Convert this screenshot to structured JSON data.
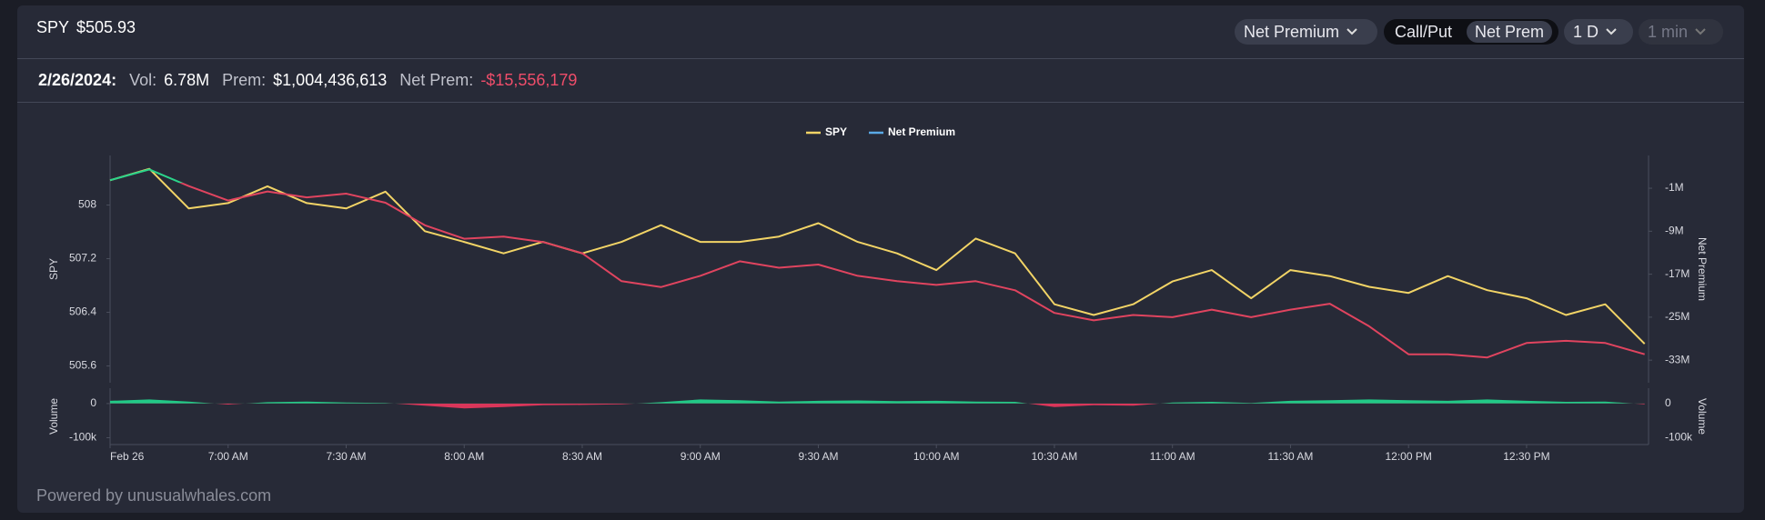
{
  "header": {
    "ticker": "SPY",
    "price": "$505.93",
    "controls": [
      "Net Premium",
      "Call/Put",
      "Net Prem",
      "1 D",
      "1 min"
    ]
  },
  "summary": {
    "date": "2/26/2024:",
    "vol_label": "Vol:",
    "vol": "6.78M",
    "prem_label": "Prem:",
    "prem": "$1,004,436,613",
    "net_label": "Net Prem:",
    "net": "-$15,556,179"
  },
  "chart_data": [
    {
      "type": "line",
      "x": [
        390,
        400,
        410,
        420,
        430,
        440,
        450,
        460,
        470,
        480,
        490,
        500,
        510,
        520,
        530,
        540,
        550,
        560,
        570,
        580,
        590,
        600,
        610,
        620,
        630,
        640,
        650,
        660,
        670,
        680,
        690,
        700,
        710,
        720,
        730,
        740,
        750,
        760,
        770,
        780
      ],
      "xlim": [
        390,
        781
      ],
      "y_label": "SPY",
      "ylim": [
        505.35,
        508.74
      ],
      "yticks": [
        505.6,
        506.4,
        507.2,
        508
      ],
      "y2_label": "Net Premium",
      "y2lim": [
        -37200000,
        5100000
      ],
      "y2ticks": [
        {
          "value": -33000000,
          "label": "-33M"
        },
        {
          "value": -25000000,
          "label": "-25M"
        },
        {
          "value": -17000000,
          "label": "-17M"
        },
        {
          "value": -9000000,
          "label": "-9M"
        },
        {
          "value": -1000000,
          "label": "-1M"
        }
      ],
      "series": [
        {
          "name": "SPY",
          "color": "#f2d466",
          "values": [
            508.37,
            508.54,
            507.95,
            508.03,
            508.28,
            508.03,
            507.95,
            508.2,
            507.61,
            507.45,
            507.28,
            507.45,
            507.28,
            507.45,
            507.7,
            507.45,
            507.45,
            507.53,
            507.73,
            507.45,
            507.28,
            507.03,
            507.5,
            507.28,
            506.52,
            506.36,
            506.52,
            506.86,
            507.03,
            506.61,
            507.03,
            506.94,
            506.78,
            506.69,
            506.94,
            506.73,
            506.61,
            506.36,
            506.52,
            505.93
          ]
        },
        {
          "name": "Net Premium",
          "axis": "y2",
          "color": "#5aa9e6",
          "positive_color": "#2bd48a",
          "negative_color": "#e0445f",
          "values": [
            500000,
            2500000,
            -600000,
            -3300000,
            -1600000,
            -2700000,
            -2000000,
            -3700000,
            -7900000,
            -10400000,
            -10000000,
            -11000000,
            -13100000,
            -18300000,
            -19400000,
            -17300000,
            -14600000,
            -15800000,
            -15200000,
            -17300000,
            -18300000,
            -19000000,
            -18300000,
            -20000000,
            -24200000,
            -25600000,
            -24600000,
            -25000000,
            -23600000,
            -25000000,
            -23600000,
            -22500000,
            -26700000,
            -31900000,
            -31900000,
            -32500000,
            -29800000,
            -29400000,
            -29800000,
            -31900000
          ]
        }
      ],
      "legend": "top-center"
    },
    {
      "type": "area",
      "x": [
        390,
        400,
        410,
        420,
        430,
        440,
        450,
        460,
        470,
        480,
        490,
        500,
        510,
        520,
        530,
        540,
        550,
        560,
        570,
        580,
        590,
        600,
        610,
        620,
        630,
        640,
        650,
        660,
        670,
        680,
        690,
        700,
        710,
        720,
        730,
        740,
        750,
        760,
        770,
        780
      ],
      "xlim": [
        390,
        781
      ],
      "xticks": [
        {
          "value": 390,
          "label": "Feb 26"
        },
        {
          "value": 420,
          "label": "7:00 AM"
        },
        {
          "value": 450,
          "label": "7:30 AM"
        },
        {
          "value": 480,
          "label": "8:00 AM"
        },
        {
          "value": 510,
          "label": "8:30 AM"
        },
        {
          "value": 540,
          "label": "9:00 AM"
        },
        {
          "value": 570,
          "label": "9:30 AM"
        },
        {
          "value": 600,
          "label": "10:00 AM"
        },
        {
          "value": 630,
          "label": "10:30 AM"
        },
        {
          "value": 660,
          "label": "11:00 AM"
        },
        {
          "value": 690,
          "label": "11:30 AM"
        },
        {
          "value": 720,
          "label": "12:00 PM"
        },
        {
          "value": 750,
          "label": "12:30 PM"
        }
      ],
      "y_label": "Volume",
      "ylim": [
        -120000,
        45000
      ],
      "yticks": [
        {
          "value": -100000,
          "label": "-100k"
        },
        0
      ],
      "positive_color": "#22c987",
      "negative_color": "#d9365a",
      "values": [
        8000,
        12000,
        6000,
        -3000,
        4000,
        6000,
        3000,
        2000,
        -6000,
        -14000,
        -10000,
        -5000,
        -4000,
        -2000,
        4000,
        12000,
        10000,
        6000,
        8000,
        9000,
        7000,
        8000,
        6000,
        5000,
        -10000,
        -5000,
        -6000,
        3000,
        5000,
        2000,
        8000,
        10000,
        12000,
        10000,
        8000,
        12000,
        8000,
        5000,
        6000,
        -2000
      ]
    }
  ],
  "footer": "Powered by unusualwhales.com"
}
